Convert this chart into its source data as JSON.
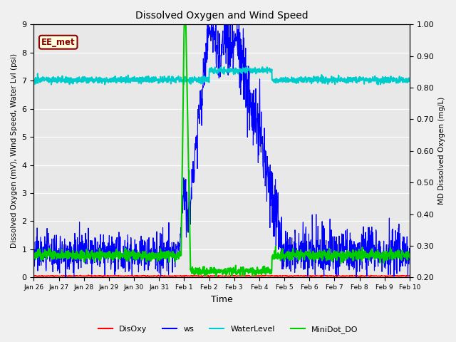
{
  "title": "Dissolved Oxygen and Wind Speed",
  "xlabel": "Time",
  "ylabel_left": "Dissolved Oxygen (mV), Wind Speed, Water Lvl (psi)",
  "ylabel_right": "MD Dissolved Oxygen (mg/L)",
  "ylim_left": [
    0.0,
    9.0
  ],
  "ylim_right": [
    0.2,
    1.0
  ],
  "xtick_labels": [
    "Jan 26",
    "Jan 27",
    "Jan 28",
    "Jan 29",
    "Jan 30",
    "Jan 31",
    "Feb 1",
    "Feb 2",
    "Feb 3",
    "Feb 4",
    "Feb 5",
    "Feb 6",
    "Feb 7",
    "Feb 8",
    "Feb 9",
    "Feb 10"
  ],
  "xtick_positions": [
    0,
    1,
    2,
    3,
    4,
    5,
    6,
    7,
    8,
    9,
    10,
    11,
    12,
    13,
    14,
    15
  ],
  "yticks_left": [
    0.0,
    1.0,
    2.0,
    3.0,
    4.0,
    5.0,
    6.0,
    7.0,
    8.0,
    9.0
  ],
  "yticks_right": [
    0.2,
    0.3,
    0.4,
    0.5,
    0.6,
    0.7,
    0.8,
    0.9,
    1.0
  ],
  "legend_label": "EE_met",
  "plot_bg_color": "#e8e8e8",
  "fig_bg_color": "#f0f0f0",
  "colors": {
    "DisOxy": "#ff0000",
    "ws": "#0000ff",
    "WaterLevel": "#00cccc",
    "MiniDot_DO": "#00cc00"
  },
  "line_widths": {
    "DisOxy": 1.0,
    "ws": 0.8,
    "WaterLevel": 1.5,
    "MiniDot_DO": 1.5
  },
  "xlim": [
    0,
    15
  ]
}
